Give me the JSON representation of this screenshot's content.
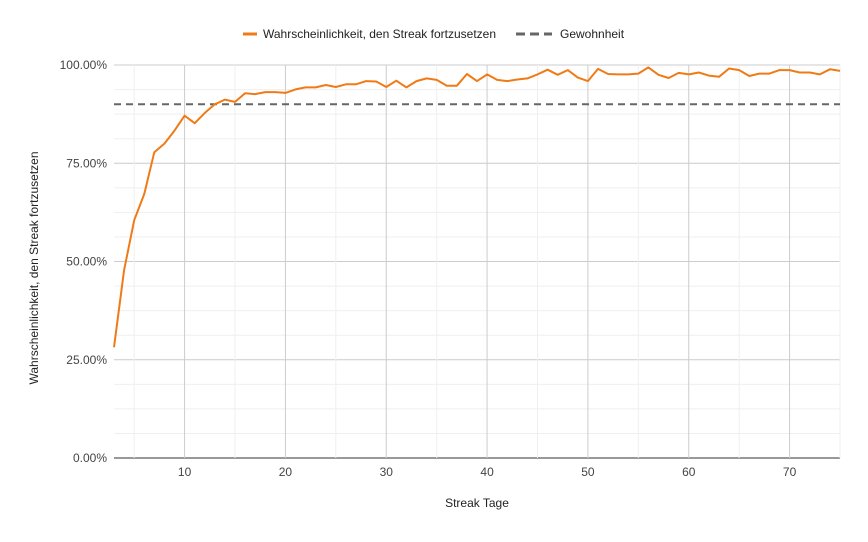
{
  "chart_data": {
    "type": "line",
    "xlabel": "Streak Tage",
    "ylabel": "Wahrscheinlichkeit, den Streak fortzusetzen",
    "xlim": [
      3,
      75
    ],
    "ylim": [
      0,
      1
    ],
    "x_ticks": [
      10,
      20,
      30,
      40,
      50,
      60,
      70
    ],
    "x_tick_labels": [
      "10",
      "20",
      "30",
      "40",
      "50",
      "60",
      "70"
    ],
    "y_ticks": [
      0,
      0.25,
      0.5,
      0.75,
      1.0
    ],
    "y_tick_labels": [
      "0.00%",
      "25.00%",
      "50.00%",
      "75.00%",
      "100.00%"
    ],
    "grid": true,
    "legend_position": "top",
    "series": [
      {
        "name": "Wahrscheinlichkeit, den Streak fortzusetzen",
        "style": "solid",
        "color": "#f07b16",
        "x": [
          3,
          4,
          5,
          6,
          7,
          8,
          9,
          10,
          11,
          12,
          13,
          14,
          15,
          16,
          17,
          18,
          19,
          20,
          21,
          22,
          23,
          24,
          25,
          26,
          27,
          28,
          29,
          30,
          31,
          32,
          33,
          34,
          35,
          36,
          37,
          38,
          39,
          40,
          41,
          42,
          43,
          44,
          45,
          46,
          47,
          48,
          49,
          50,
          51,
          52,
          53,
          54,
          55,
          56,
          57,
          58,
          59,
          60,
          61,
          62,
          63,
          64,
          65,
          66,
          67,
          68,
          69,
          70,
          71,
          72,
          73,
          74,
          75
        ],
        "values": [
          0.282,
          0.478,
          0.605,
          0.672,
          0.778,
          0.8,
          0.833,
          0.871,
          0.852,
          0.878,
          0.9,
          0.912,
          0.906,
          0.928,
          0.926,
          0.931,
          0.931,
          0.929,
          0.938,
          0.943,
          0.943,
          0.949,
          0.944,
          0.951,
          0.951,
          0.959,
          0.958,
          0.944,
          0.96,
          0.943,
          0.959,
          0.966,
          0.962,
          0.947,
          0.947,
          0.977,
          0.959,
          0.976,
          0.962,
          0.959,
          0.963,
          0.966,
          0.976,
          0.988,
          0.975,
          0.987,
          0.968,
          0.959,
          0.99,
          0.977,
          0.976,
          0.976,
          0.978,
          0.994,
          0.975,
          0.967,
          0.98,
          0.976,
          0.981,
          0.973,
          0.97,
          0.991,
          0.987,
          0.972,
          0.978,
          0.978,
          0.987,
          0.987,
          0.981,
          0.981,
          0.976,
          0.989,
          0.985
        ]
      },
      {
        "name": "Gewohnheit",
        "style": "dashed",
        "color": "#666666",
        "x": [
          3,
          75
        ],
        "values": [
          0.9,
          0.9
        ]
      }
    ]
  }
}
